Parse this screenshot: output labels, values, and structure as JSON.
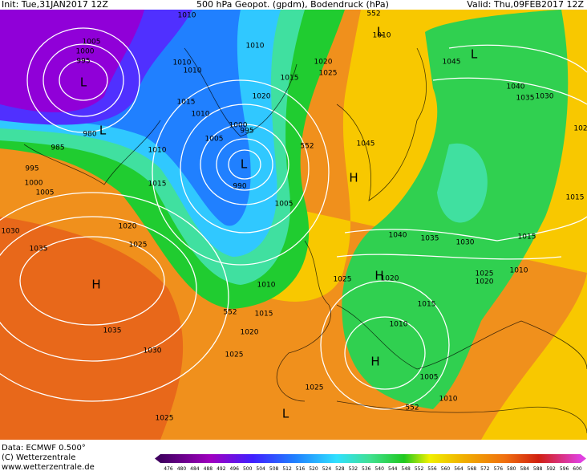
{
  "header": {
    "init": "Init: Tue,31JAN2017 12Z",
    "title": "500 hPa Geopot. (gpdm), Bodendruck (hPa)",
    "valid": "Valid: Thu,09FEB2017 12Z"
  },
  "footer": {
    "data": "Data: ECMWF  0.500°",
    "copyright": "(C) Wetterzentrale",
    "url": "www.wetterzentrale.de"
  },
  "colorbar": {
    "labels": [
      476,
      480,
      484,
      488,
      492,
      496,
      500,
      504,
      508,
      512,
      516,
      520,
      524,
      528,
      532,
      536,
      540,
      544,
      548,
      552,
      556,
      560,
      564,
      568,
      572,
      576,
      580,
      584,
      588,
      592,
      596,
      600
    ]
  },
  "map": {
    "isobar_labels": [
      "1010",
      "1005",
      "1000",
      "995",
      "1010",
      "1010",
      "1010",
      "1020",
      "1025",
      "1015",
      "1045",
      "1040",
      "1035",
      "1030",
      "1010",
      "552",
      "1015",
      "1020",
      "1010",
      "1000",
      "995",
      "1005",
      "980",
      "985",
      "1010",
      "552",
      "1045",
      "990",
      "995",
      "1000",
      "1005",
      "1015",
      "1015",
      "102",
      "1005",
      "1020",
      "1030",
      "1025",
      "1035",
      "1040",
      "1035",
      "1030",
      "1015",
      "1010",
      "1025",
      "1020",
      "1025",
      "1020",
      "1010",
      "552",
      "1015",
      "1015",
      "1035",
      "1020",
      "1010",
      "1030",
      "1025",
      "1005",
      "1025",
      "1010",
      "552",
      "1025"
    ],
    "centers": [
      "L",
      "L",
      "L",
      "L",
      "L",
      "H",
      "H",
      "H",
      "H",
      "L"
    ]
  }
}
